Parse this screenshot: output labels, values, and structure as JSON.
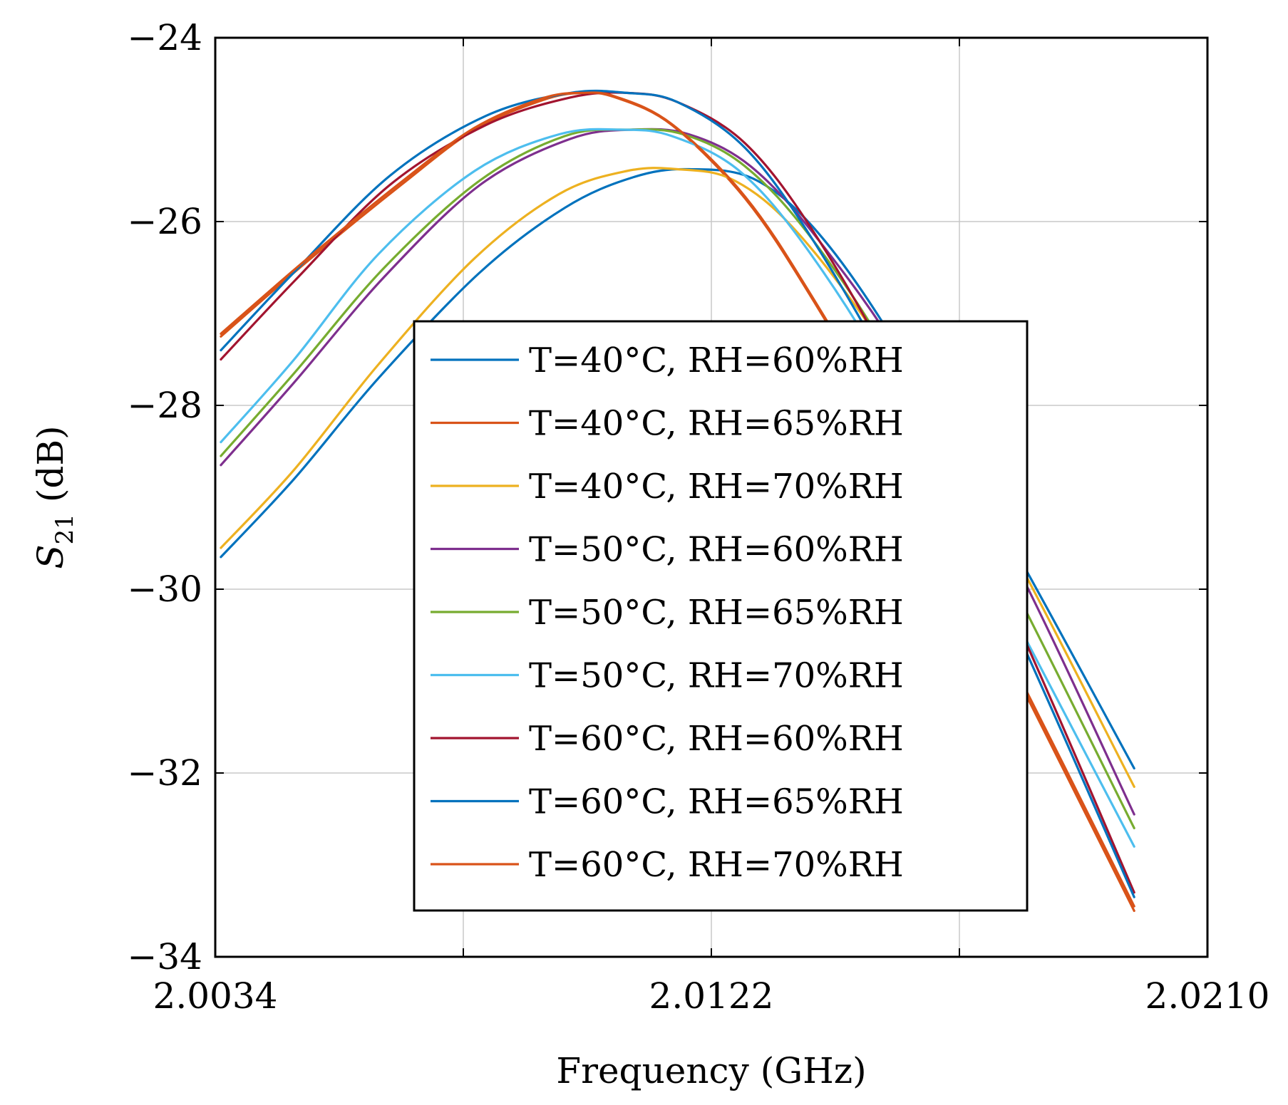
{
  "chart_data": {
    "type": "line",
    "xlabel": "Frequency (GHz)",
    "ylabel_main": "S",
    "ylabel_sub": "21",
    "ylabel_unit": " (dB)",
    "xlim": [
      2.0034,
      2.021
    ],
    "ylim": [
      -34,
      -24
    ],
    "xticks": [
      2.0034,
      2.0122,
      2.021
    ],
    "xtick_labels": [
      "2.0034",
      "2.0122",
      "2.0210"
    ],
    "xgrid": [
      2.0034,
      2.0078,
      2.0122,
      2.0166,
      2.021
    ],
    "yticks": [
      -34,
      -32,
      -30,
      -28,
      -26,
      -24
    ],
    "ytick_labels": [
      "−34",
      "−32",
      "−30",
      "−28",
      "−26",
      "−24"
    ],
    "legend_position": "center",
    "series": [
      {
        "name": "T=40°C, RH=60%RH",
        "color": "#0072BD",
        "x": [
          2.0035,
          2.0048,
          2.0063,
          2.0081,
          2.0096,
          2.0108,
          2.0118,
          2.013,
          2.0142,
          2.0157,
          2.0177,
          2.0197
        ],
        "y": [
          -29.65,
          -28.8,
          -27.7,
          -26.55,
          -25.85,
          -25.52,
          -25.43,
          -25.55,
          -26.2,
          -27.55,
          -29.7,
          -31.95
        ]
      },
      {
        "name": "T=40°C, RH=65%RH",
        "color": "#D95319",
        "x": [
          2.0035,
          2.005,
          2.0067,
          2.008,
          2.0092,
          2.0099,
          2.0105,
          2.0115,
          2.0128,
          2.014,
          2.0157,
          2.0177,
          2.0197
        ],
        "y": [
          -27.25,
          -26.45,
          -25.6,
          -25.0,
          -24.68,
          -24.6,
          -24.65,
          -24.95,
          -25.75,
          -26.85,
          -28.65,
          -31.05,
          -33.5
        ]
      },
      {
        "name": "T=40°C, RH=70%RH",
        "color": "#EDB120",
        "x": [
          2.0035,
          2.0048,
          2.0063,
          2.008,
          2.0095,
          2.0107,
          2.0116,
          2.0126,
          2.0137,
          2.0152,
          2.0172,
          2.0197
        ],
        "y": [
          -29.55,
          -28.7,
          -27.55,
          -26.4,
          -25.7,
          -25.45,
          -25.43,
          -25.55,
          -26.1,
          -27.3,
          -29.2,
          -32.15
        ]
      },
      {
        "name": "T=50°C, RH=60%RH",
        "color": "#7E2F8E",
        "x": [
          2.0035,
          2.0048,
          2.0064,
          2.0081,
          2.0097,
          2.0108,
          2.0118,
          2.0129,
          2.0141,
          2.0157,
          2.0177,
          2.0197
        ],
        "y": [
          -28.65,
          -27.75,
          -26.6,
          -25.6,
          -25.1,
          -25.0,
          -25.05,
          -25.4,
          -26.2,
          -27.6,
          -29.85,
          -32.45
        ]
      },
      {
        "name": "T=50°C, RH=65%RH",
        "color": "#77AC30",
        "x": [
          2.0035,
          2.0048,
          2.0064,
          2.0081,
          2.0096,
          2.0107,
          2.0117,
          2.0128,
          2.014,
          2.0155,
          2.0175,
          2.0197
        ],
        "y": [
          -28.55,
          -27.65,
          -26.5,
          -25.55,
          -25.07,
          -25.0,
          -25.05,
          -25.4,
          -26.2,
          -27.6,
          -29.9,
          -32.6
        ]
      },
      {
        "name": "T=50°C, RH=70%RH",
        "color": "#4DBEEE",
        "x": [
          2.0035,
          2.0048,
          2.0063,
          2.008,
          2.0095,
          2.0106,
          2.0115,
          2.0127,
          2.0139,
          2.0154,
          2.0174,
          2.0197
        ],
        "y": [
          -28.4,
          -27.5,
          -26.35,
          -25.45,
          -25.05,
          -25.0,
          -25.07,
          -25.45,
          -26.3,
          -27.75,
          -30.1,
          -32.8
        ]
      },
      {
        "name": "T=60°C, RH=60%RH",
        "color": "#A2142F",
        "x": [
          2.0035,
          2.0048,
          2.0065,
          2.0082,
          2.0097,
          2.0107,
          2.0116,
          2.0128,
          2.014,
          2.0155,
          2.0175,
          2.0197
        ],
        "y": [
          -27.5,
          -26.65,
          -25.6,
          -24.95,
          -24.65,
          -24.6,
          -24.7,
          -25.15,
          -26.1,
          -27.7,
          -30.2,
          -33.3
        ]
      },
      {
        "name": "T=60°C, RH=65%RH",
        "color": "#0072BD",
        "x": [
          2.0035,
          2.0048,
          2.0065,
          2.0082,
          2.0097,
          2.0107,
          2.0116,
          2.0128,
          2.014,
          2.0155,
          2.0175,
          2.0197
        ],
        "y": [
          -27.4,
          -26.55,
          -25.5,
          -24.85,
          -24.6,
          -24.6,
          -24.7,
          -25.2,
          -26.2,
          -27.8,
          -30.3,
          -33.35
        ]
      },
      {
        "name": "T=60°C, RH=70%RH",
        "color": "#D95319",
        "x": [
          2.0035,
          2.005,
          2.0067,
          2.008,
          2.0092,
          2.0099,
          2.0105,
          2.0115,
          2.0128,
          2.014,
          2.0157,
          2.0177,
          2.0197
        ],
        "y": [
          -27.22,
          -26.42,
          -25.57,
          -24.98,
          -24.66,
          -24.6,
          -24.64,
          -24.94,
          -25.73,
          -26.83,
          -28.62,
          -31.0,
          -33.45
        ]
      }
    ]
  }
}
